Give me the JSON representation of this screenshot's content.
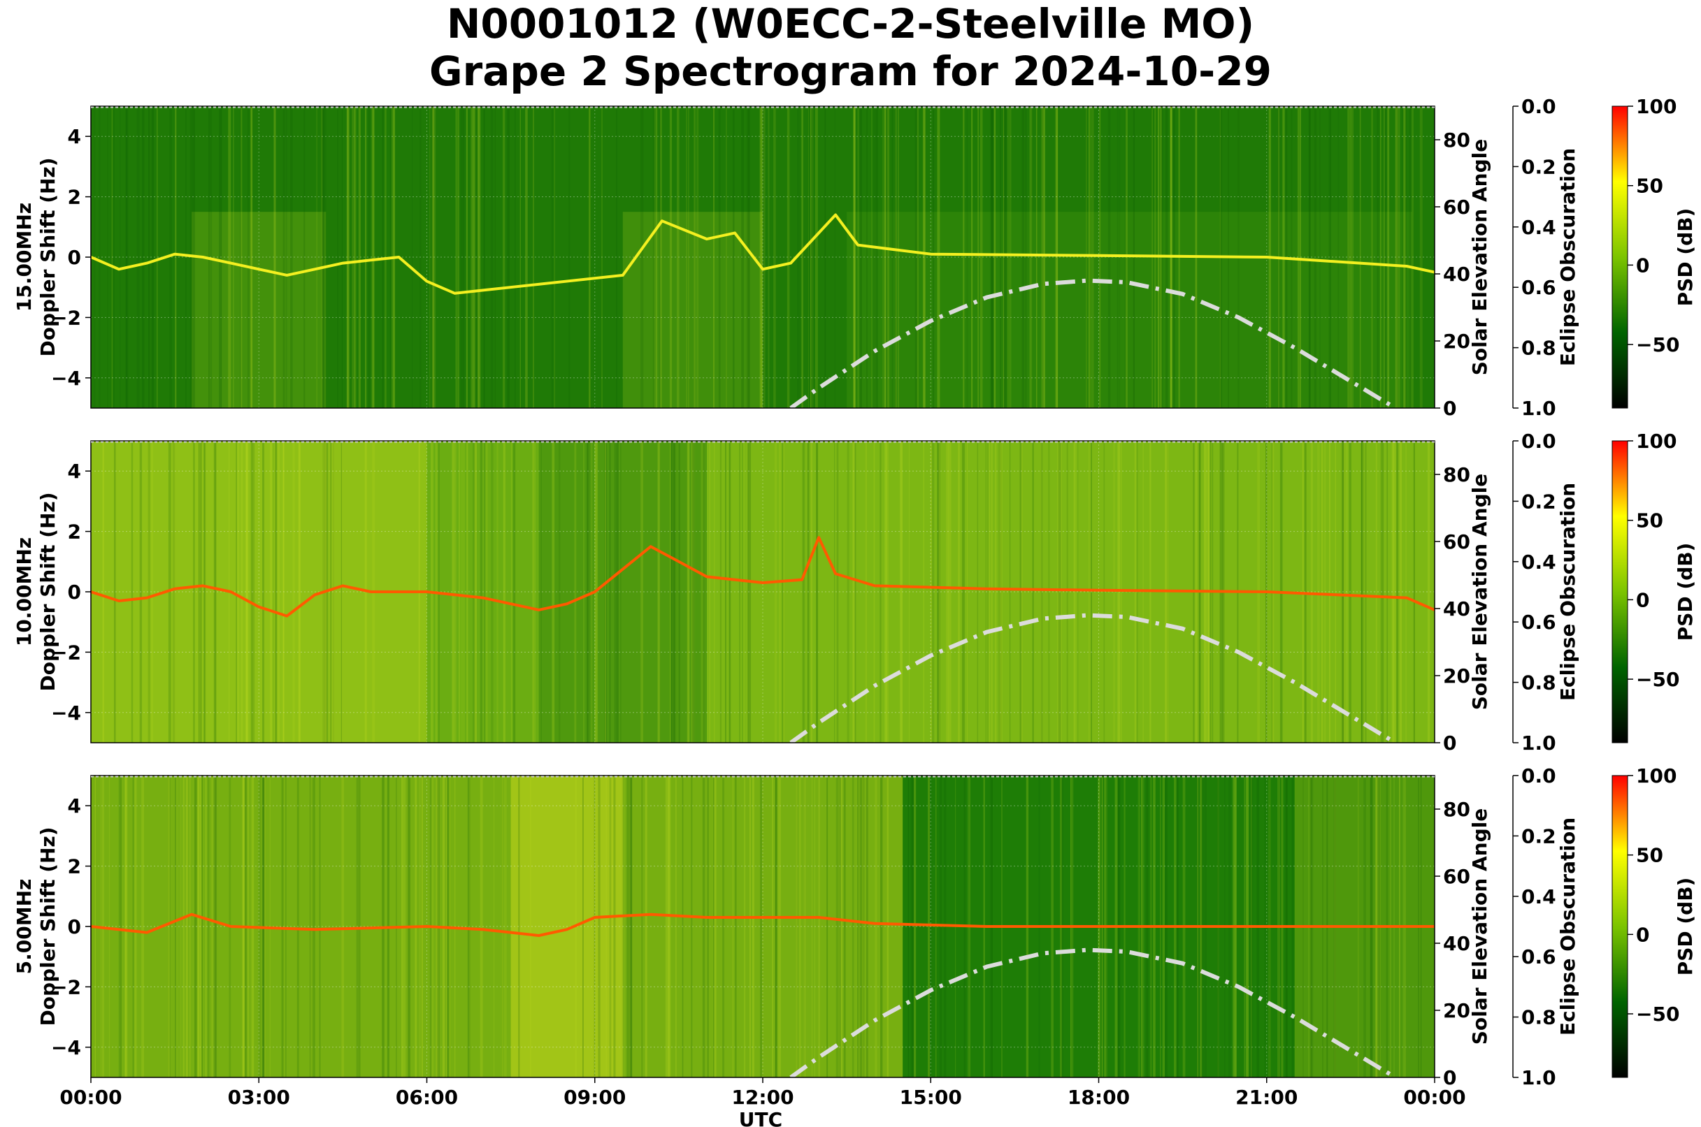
{
  "title": {
    "line1": "N0001012 (W0ECC-2-Steelville MO)",
    "line2": "Grape 2 Spectrogram for 2024-10-29"
  },
  "chart_data": {
    "type": "heatmap",
    "xlabel": "UTC",
    "x_ticks": [
      "00:00",
      "03:00",
      "06:00",
      "09:00",
      "12:00",
      "15:00",
      "18:00",
      "21:00",
      "00:00"
    ],
    "x_range_hours": [
      0,
      24
    ],
    "colormap": {
      "label": "PSD (dB)",
      "range": [
        -90,
        100
      ],
      "ticks": [
        -50,
        0,
        50,
        100
      ],
      "tick_labels": [
        "−50",
        "0",
        "50",
        "100"
      ],
      "colors": [
        "#000000",
        "#006400",
        "#7cc400",
        "#ffff00",
        "#ff0000"
      ]
    },
    "panels": [
      {
        "id": "15mhz",
        "ylabel": "15.00MHz\nDoppler Shift (Hz)",
        "ylabel_lines": [
          "15.00MHz",
          "Doppler Shift (Hz)"
        ],
        "ylim": [
          -5,
          5
        ],
        "y_ticks": [
          4,
          2,
          0,
          -2,
          -4
        ],
        "y_tick_labels": [
          "4",
          "2",
          "0",
          "−2",
          "−4"
        ],
        "intensity": "low",
        "doppler_trace": [
          [
            0.0,
            0.0
          ],
          [
            0.5,
            -0.4
          ],
          [
            1.0,
            -0.2
          ],
          [
            1.5,
            0.1
          ],
          [
            2.0,
            0.0
          ],
          [
            2.5,
            -0.2
          ],
          [
            3.0,
            -0.4
          ],
          [
            3.5,
            -0.6
          ],
          [
            4.0,
            -0.4
          ],
          [
            4.5,
            -0.2
          ],
          [
            5.0,
            -0.1
          ],
          [
            5.5,
            0.0
          ],
          [
            6.0,
            -0.8
          ],
          [
            6.5,
            -1.2
          ],
          [
            9.5,
            -0.6
          ],
          [
            10.2,
            1.2
          ],
          [
            11.0,
            0.6
          ],
          [
            11.5,
            0.8
          ],
          [
            12.0,
            -0.4
          ],
          [
            12.5,
            -0.2
          ],
          [
            13.3,
            1.4
          ],
          [
            13.7,
            0.4
          ],
          [
            15.0,
            0.1
          ],
          [
            18.0,
            0.05
          ],
          [
            21.0,
            0.0
          ],
          [
            23.5,
            -0.3
          ],
          [
            24.0,
            -0.5
          ]
        ]
      },
      {
        "id": "10mhz",
        "ylabel": "10.00MHz\nDoppler Shift (Hz)",
        "ylabel_lines": [
          "10.00MHz",
          "Doppler Shift (Hz)"
        ],
        "ylim": [
          -5,
          5
        ],
        "y_ticks": [
          4,
          2,
          0,
          -2,
          -4
        ],
        "y_tick_labels": [
          "4",
          "2",
          "0",
          "−2",
          "−4"
        ],
        "intensity": "high",
        "doppler_trace": [
          [
            0.0,
            0.0
          ],
          [
            0.5,
            -0.3
          ],
          [
            1.0,
            -0.2
          ],
          [
            1.5,
            0.1
          ],
          [
            2.0,
            0.2
          ],
          [
            2.5,
            0.0
          ],
          [
            3.0,
            -0.5
          ],
          [
            3.5,
            -0.8
          ],
          [
            4.0,
            -0.1
          ],
          [
            4.5,
            0.2
          ],
          [
            5.0,
            0.0
          ],
          [
            6.0,
            0.0
          ],
          [
            7.0,
            -0.2
          ],
          [
            8.0,
            -0.6
          ],
          [
            8.5,
            -0.4
          ],
          [
            9.0,
            0.0
          ],
          [
            10.0,
            1.5
          ],
          [
            10.5,
            1.0
          ],
          [
            11.0,
            0.5
          ],
          [
            12.0,
            0.3
          ],
          [
            12.7,
            0.4
          ],
          [
            13.0,
            1.8
          ],
          [
            13.3,
            0.6
          ],
          [
            14.0,
            0.2
          ],
          [
            16.0,
            0.1
          ],
          [
            18.0,
            0.05
          ],
          [
            21.0,
            0.0
          ],
          [
            23.5,
            -0.2
          ],
          [
            24.0,
            -0.6
          ]
        ]
      },
      {
        "id": "5mhz",
        "ylabel": "5.00MHz\nDoppler Shift (Hz)",
        "ylabel_lines": [
          "5.00MHz",
          "Doppler Shift (Hz)"
        ],
        "ylim": [
          -5,
          5
        ],
        "y_ticks": [
          4,
          2,
          0,
          -2,
          -4
        ],
        "y_tick_labels": [
          "4",
          "2",
          "0",
          "−2",
          "−4"
        ],
        "intensity": "mixed",
        "doppler_trace": [
          [
            0.0,
            0.0
          ],
          [
            1.0,
            -0.2
          ],
          [
            1.8,
            0.4
          ],
          [
            2.5,
            0.0
          ],
          [
            4.0,
            -0.1
          ],
          [
            6.0,
            0.0
          ],
          [
            7.0,
            -0.1
          ],
          [
            8.0,
            -0.3
          ],
          [
            8.5,
            -0.1
          ],
          [
            9.0,
            0.3
          ],
          [
            10.0,
            0.4
          ],
          [
            11.0,
            0.3
          ],
          [
            12.0,
            0.3
          ],
          [
            13.0,
            0.3
          ],
          [
            14.0,
            0.1
          ],
          [
            16.0,
            0.0
          ],
          [
            18.0,
            0.0
          ],
          [
            21.0,
            0.0
          ],
          [
            24.0,
            0.0
          ]
        ]
      }
    ],
    "solar_elevation": {
      "label": "Solar Elevation Angle",
      "ylim": [
        0,
        90
      ],
      "y_ticks": [
        0,
        20,
        40,
        60,
        80
      ],
      "y_tick_labels": [
        "0",
        "20",
        "40",
        "60",
        "80"
      ],
      "style": "dash-dot",
      "color": "#dcdcdc",
      "points": [
        [
          12.5,
          0
        ],
        [
          13.0,
          6
        ],
        [
          14.0,
          17
        ],
        [
          15.0,
          26
        ],
        [
          16.0,
          33
        ],
        [
          17.0,
          37
        ],
        [
          17.8,
          38
        ],
        [
          18.5,
          37.5
        ],
        [
          19.5,
          34
        ],
        [
          20.5,
          27
        ],
        [
          21.5,
          18
        ],
        [
          22.5,
          8
        ],
        [
          23.3,
          0
        ]
      ]
    },
    "eclipse_obscuration": {
      "label": "Eclipse Obscuration",
      "ylim": [
        0.0,
        1.0
      ],
      "inverted": true,
      "y_ticks": [
        0.0,
        0.2,
        0.4,
        0.6,
        0.8,
        1.0
      ],
      "y_tick_labels": [
        "0.0",
        "0.2",
        "0.4",
        "0.6",
        "0.8",
        "1.0"
      ]
    }
  }
}
